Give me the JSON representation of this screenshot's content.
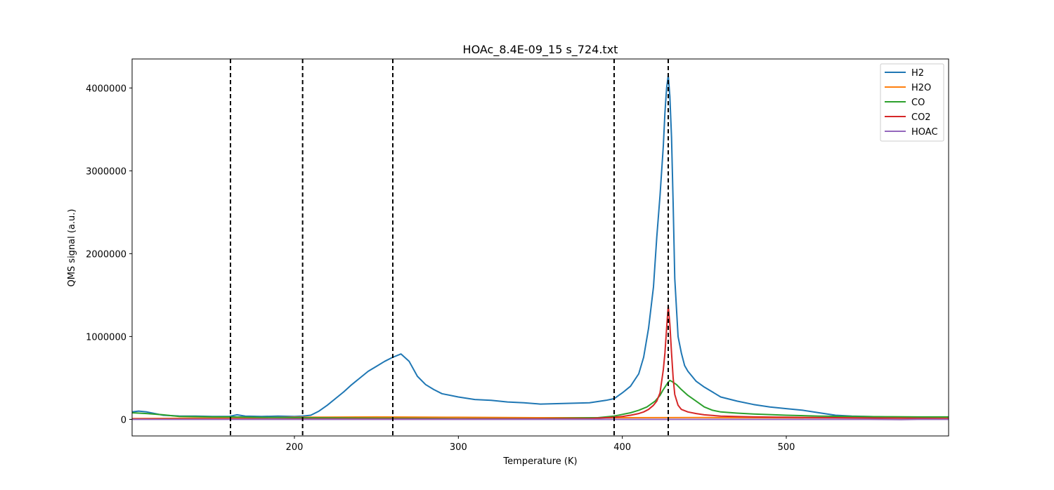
{
  "chart_data": {
    "type": "line",
    "title": "HOAc_8.4E-09_15 s_724.txt",
    "xlabel": "Temperature (K)",
    "ylabel": "QMS signal (a.u.)",
    "xlim": [
      101,
      599
    ],
    "ylim": [
      -200000,
      4350000
    ],
    "xticks": [
      200,
      300,
      400,
      500
    ],
    "yticks": [
      0,
      1000000,
      2000000,
      3000000,
      4000000
    ],
    "xtick_labels": [
      "200",
      "300",
      "400",
      "500"
    ],
    "ytick_labels": [
      "0",
      "1000000",
      "2000000",
      "3000000",
      "4000000"
    ],
    "grid": false,
    "legend_position": "top-right",
    "vlines": [
      161,
      205,
      260,
      395,
      428
    ],
    "series": [
      {
        "name": "H2",
        "color": "#1f77b4",
        "x": [
          101,
          105,
          110,
          120,
          130,
          140,
          150,
          160,
          165,
          170,
          180,
          190,
          200,
          205,
          210,
          215,
          220,
          225,
          230,
          235,
          240,
          245,
          250,
          255,
          260,
          265,
          270,
          275,
          280,
          285,
          290,
          300,
          310,
          320,
          330,
          340,
          350,
          360,
          370,
          380,
          390,
          395,
          400,
          405,
          410,
          413,
          416,
          419,
          421,
          423,
          425,
          426,
          427,
          428,
          429,
          430,
          431,
          432,
          434,
          436,
          438,
          440,
          445,
          450,
          455,
          460,
          470,
          480,
          490,
          500,
          510,
          520,
          530,
          540,
          560,
          580,
          599
        ],
        "y": [
          90000,
          100000,
          90000,
          50000,
          40000,
          40000,
          35000,
          35000,
          55000,
          40000,
          35000,
          40000,
          35000,
          40000,
          50000,
          100000,
          170000,
          250000,
          330000,
          420000,
          500000,
          580000,
          640000,
          700000,
          750000,
          790000,
          700000,
          520000,
          420000,
          360000,
          310000,
          270000,
          240000,
          230000,
          210000,
          200000,
          185000,
          190000,
          195000,
          200000,
          230000,
          250000,
          320000,
          400000,
          550000,
          750000,
          1100000,
          1600000,
          2200000,
          2700000,
          3300000,
          3700000,
          4000000,
          4150000,
          3900000,
          3400000,
          2600000,
          1700000,
          1000000,
          800000,
          650000,
          580000,
          460000,
          390000,
          330000,
          270000,
          220000,
          180000,
          150000,
          130000,
          110000,
          80000,
          50000,
          40000,
          30000,
          20000,
          15000
        ]
      },
      {
        "name": "H2O",
        "color": "#ff7f0e",
        "x": [
          101,
          150,
          200,
          250,
          300,
          350,
          400,
          450,
          500,
          550,
          599
        ],
        "y": [
          10000,
          15000,
          25000,
          30000,
          25000,
          20000,
          20000,
          22000,
          20000,
          18000,
          15000
        ]
      },
      {
        "name": "CO",
        "color": "#2ca02c",
        "x": [
          101,
          110,
          120,
          130,
          150,
          160,
          200,
          250,
          300,
          350,
          385,
          390,
          395,
          400,
          405,
          410,
          415,
          420,
          423,
          425,
          427,
          428,
          429,
          430,
          433,
          436,
          440,
          445,
          450,
          455,
          460,
          470,
          480,
          500,
          520,
          540,
          560,
          580,
          599
        ],
        "y": [
          80000,
          70000,
          55000,
          35000,
          30000,
          30000,
          20000,
          15000,
          10000,
          10000,
          20000,
          30000,
          40000,
          60000,
          80000,
          110000,
          150000,
          220000,
          290000,
          360000,
          420000,
          450000,
          470000,
          460000,
          420000,
          360000,
          290000,
          220000,
          150000,
          110000,
          90000,
          75000,
          65000,
          50000,
          40000,
          35000,
          32000,
          30000,
          30000
        ]
      },
      {
        "name": "CO2",
        "color": "#d62728",
        "x": [
          101,
          200,
          300,
          380,
          390,
          395,
          400,
          405,
          410,
          413,
          416,
          419,
          421,
          423,
          425,
          426,
          427,
          428,
          429,
          430,
          431,
          432,
          434,
          436,
          440,
          445,
          450,
          460,
          480,
          500,
          530,
          560,
          599
        ],
        "y": [
          5000,
          5000,
          5000,
          10000,
          20000,
          25000,
          35000,
          50000,
          70000,
          90000,
          120000,
          170000,
          220000,
          320000,
          600000,
          800000,
          1100000,
          1370000,
          1150000,
          800000,
          500000,
          300000,
          170000,
          120000,
          90000,
          70000,
          55000,
          40000,
          30000,
          25000,
          20000,
          15000,
          10000
        ]
      },
      {
        "name": "HOAC",
        "color": "#9467bd",
        "x": [
          101,
          200,
          300,
          400,
          500,
          550,
          570,
          580,
          599
        ],
        "y": [
          0,
          0,
          0,
          0,
          0,
          0,
          -3000,
          0,
          0
        ]
      }
    ]
  }
}
